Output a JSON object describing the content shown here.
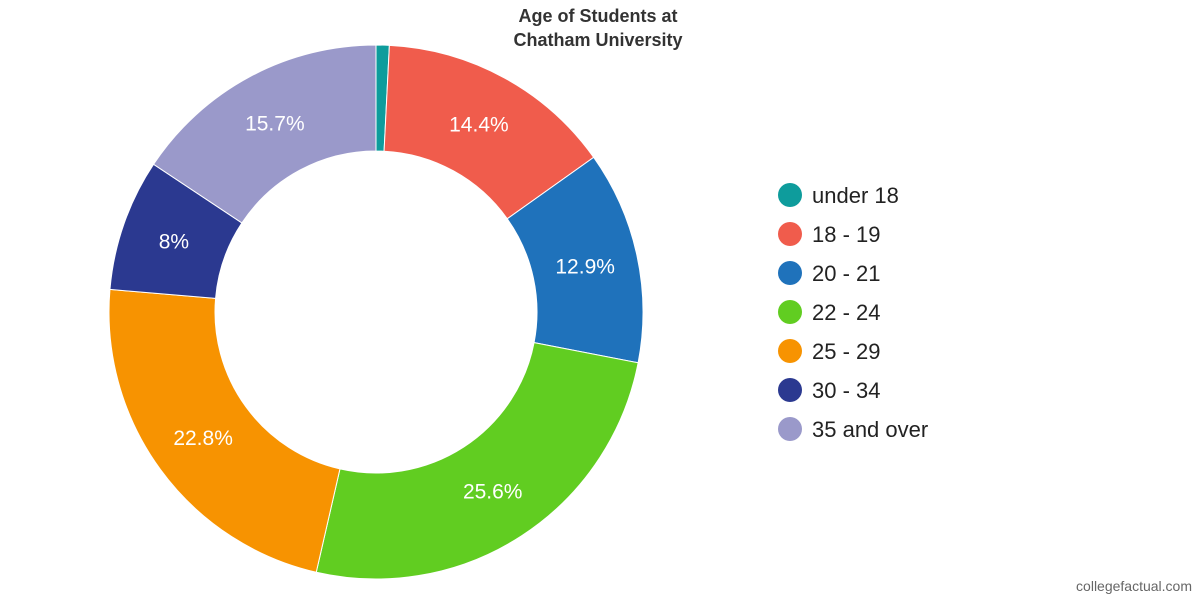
{
  "chart_data": {
    "type": "pie",
    "style": "donut",
    "title": [
      "Age of Students at",
      "Chatham University"
    ],
    "categories": [
      "under 18",
      "18 - 19",
      "20 - 21",
      "22 - 24",
      "25 - 29",
      "30 - 34",
      "35 and over"
    ],
    "values": [
      0.8,
      14.4,
      12.9,
      25.6,
      22.8,
      8,
      15.7
    ],
    "labels": [
      "",
      "14.4%",
      "12.9%",
      "25.6%",
      "22.8%",
      "8%",
      "15.7%"
    ],
    "colors": [
      "#0e9c9c",
      "#f05c4c",
      "#1f72bb",
      "#61cd21",
      "#f79301",
      "#2b3990",
      "#9a99ca"
    ],
    "legend_position": "right"
  },
  "credit": "collegefactual.com"
}
